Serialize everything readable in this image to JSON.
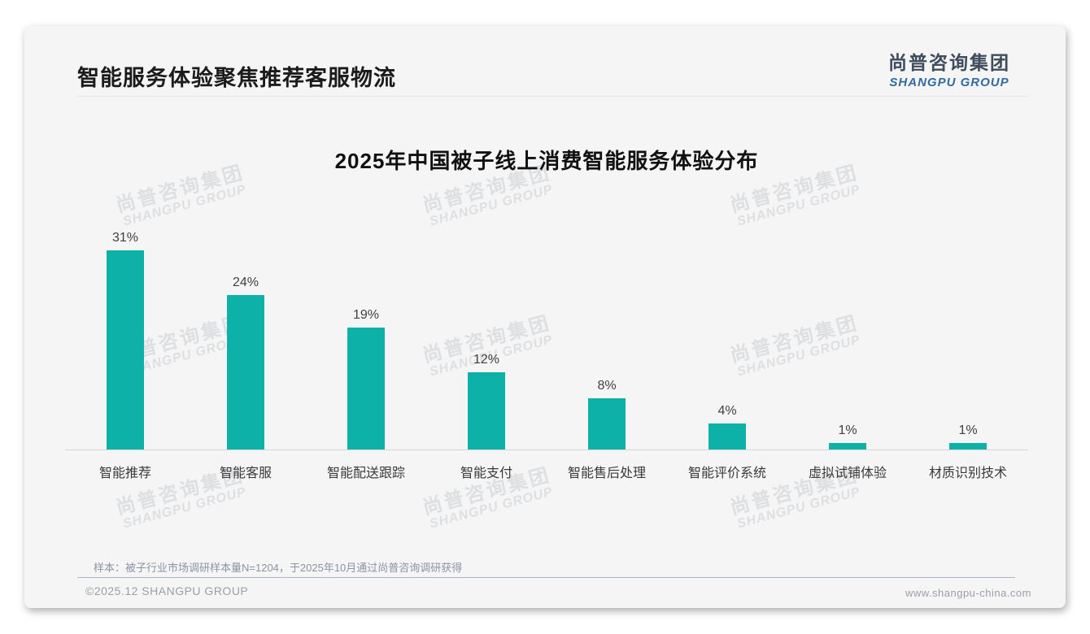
{
  "page": {
    "header_title": "智能服务体验聚焦推荐客服物流",
    "logo": {
      "cn": "尚普咨询集团",
      "en": "SHANGPU GROUP"
    },
    "watermark": {
      "cn": "尚普咨询集团",
      "en": "SHANGPU GROUP"
    },
    "source_note": "样本：被子行业市场调研样本量N=1204，于2025年10月通过尚普咨询调研获得",
    "footer_left": "©2025.12 SHANGPU GROUP",
    "footer_right": "www.shangpu-china.com"
  },
  "chart_data": {
    "type": "bar",
    "title": "2025年中国被子线上消费智能服务体验分布",
    "categories": [
      "智能推荐",
      "智能客服",
      "智能配送跟踪",
      "智能支付",
      "智能售后处理",
      "智能评价系统",
      "虚拟试铺体验",
      "材质识别技术"
    ],
    "values": [
      31,
      24,
      19,
      12,
      8,
      4,
      1,
      1
    ],
    "unit": "%",
    "value_labels": [
      "31%",
      "24%",
      "19%",
      "12%",
      "8%",
      "4%",
      "1%",
      "1%"
    ],
    "bar_color": "#0db1a8",
    "ylim": [
      0,
      33
    ],
    "grid": "off",
    "legend": "none",
    "xlabel": "",
    "ylabel": ""
  }
}
